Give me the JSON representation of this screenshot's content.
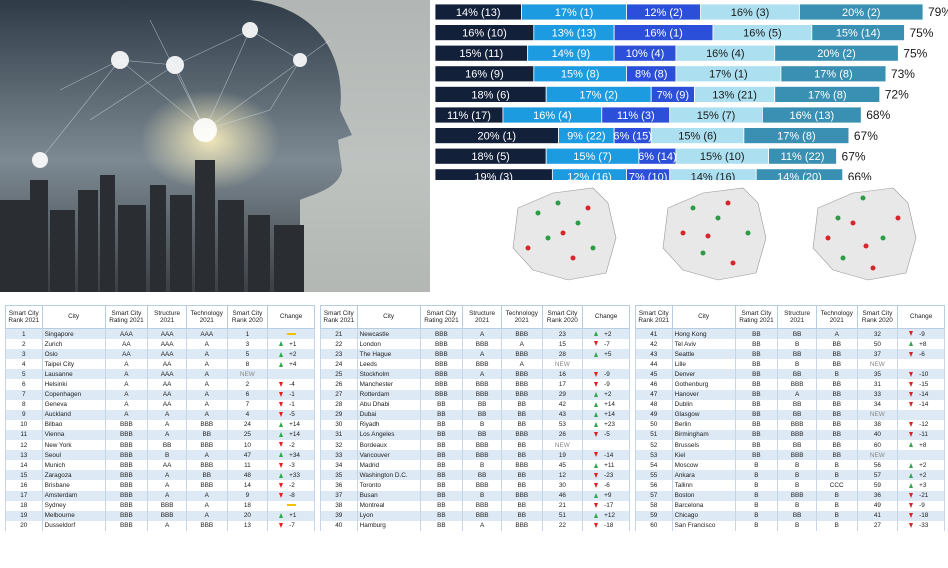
{
  "chart_data": {
    "type": "stacked_bar",
    "series": [
      {
        "color": "#13203a",
        "values": [
          14,
          16,
          15,
          16,
          18,
          11,
          20,
          18,
          19
        ],
        "value_labels": [
          "14% (13)",
          "16% (10)",
          "15% (11)",
          "16% (9)",
          "18% (6)",
          "11% (17)",
          "20% (1)",
          "18% (5)",
          "19% (3)"
        ]
      },
      {
        "color": "#1c9be0",
        "values": [
          17,
          13,
          14,
          15,
          17,
          16,
          9,
          15,
          12
        ],
        "value_labels": [
          "17% (1)",
          "13% (13)",
          "14% (9)",
          "15% (8)",
          "17% (2)",
          "16% (4)",
          "9% (22)",
          "15% (7)",
          "12% (16)"
        ]
      },
      {
        "color": "#2b4fd8",
        "values": [
          12,
          16,
          10,
          8,
          7,
          11,
          6,
          6,
          7
        ],
        "value_labels": [
          "12% (2)",
          "16% (1)",
          "10% (4)",
          "8% (8)",
          "7% (9)",
          "11% (3)",
          "6% (15)",
          "6% (14)",
          "7% (10)"
        ]
      },
      {
        "color": "#ace0f1",
        "values": [
          16,
          16,
          16,
          17,
          13,
          15,
          15,
          15,
          14
        ],
        "value_labels": [
          "16% (3)",
          "16% (5)",
          "16% (4)",
          "17% (1)",
          "13% (21)",
          "15% (7)",
          "15% (6)",
          "15% (10)",
          "14% (16)"
        ]
      },
      {
        "color": "#3a90b2",
        "values": [
          20,
          15,
          20,
          17,
          17,
          16,
          17,
          11,
          14
        ],
        "value_labels": [
          "20% (2)",
          "15% (14)",
          "20% (2)",
          "17% (8)",
          "17% (8)",
          "16% (13)",
          "17% (8)",
          "11% (22)",
          "14% (20)"
        ]
      }
    ],
    "totals": {
      "values": [
        79,
        75,
        75,
        73,
        72,
        68,
        67,
        67,
        66
      ],
      "value_labels": [
        "79%",
        "75%",
        "75%",
        "73%",
        "72%",
        "68%",
        "67%",
        "67%",
        "66%"
      ]
    }
  },
  "tables": [
    {
      "header": [
        "Smart City Rank 2021",
        "City",
        "Smart City Rating 2021",
        "Structure 2021",
        "Technology 2021",
        "Smart City Rank 2020",
        "Change"
      ],
      "rows": [
        [
          1,
          "Singapore",
          "AAA",
          "AAA",
          "AAA",
          1,
          null
        ],
        [
          2,
          "Zurich",
          "AA",
          "AAA",
          "A",
          3,
          "+1"
        ],
        [
          3,
          "Oslo",
          "AA",
          "AAA",
          "A",
          5,
          "+2"
        ],
        [
          4,
          "Taipei City",
          "A",
          "AA",
          "A",
          8,
          "+4"
        ],
        [
          5,
          "Lausanne",
          "A",
          "AAA",
          "A",
          "NEW",
          null
        ],
        [
          6,
          "Helsinki",
          "A",
          "AA",
          "A",
          2,
          "-4"
        ],
        [
          7,
          "Copenhagen",
          "A",
          "AA",
          "A",
          6,
          "-1"
        ],
        [
          8,
          "Geneva",
          "A",
          "AA",
          "A",
          7,
          "-1"
        ],
        [
          9,
          "Auckland",
          "A",
          "A",
          "A",
          4,
          "-5"
        ],
        [
          10,
          "Bilbao",
          "BBB",
          "A",
          "BBB",
          24,
          "+14"
        ],
        [
          11,
          "Vienna",
          "BBB",
          "A",
          "BB",
          25,
          "+14"
        ],
        [
          12,
          "New York",
          "BBB",
          "BB",
          "BBB",
          10,
          "-2"
        ],
        [
          13,
          "Seoul",
          "BBB",
          "B",
          "A",
          47,
          "+34"
        ],
        [
          14,
          "Munich",
          "BBB",
          "AA",
          "BBB",
          11,
          "-3"
        ],
        [
          15,
          "Zaragoza",
          "BBB",
          "A",
          "BB",
          48,
          "+33"
        ],
        [
          16,
          "Brisbane",
          "BBB",
          "A",
          "BBB",
          14,
          "-2"
        ],
        [
          17,
          "Amsterdam",
          "BBB",
          "A",
          "A",
          9,
          "-8"
        ],
        [
          18,
          "Sydney",
          "BBB",
          "BBB",
          "A",
          18,
          null
        ],
        [
          19,
          "Melbourne",
          "BBB",
          "BBB",
          "A",
          20,
          "+1"
        ],
        [
          20,
          "Dusseldorf",
          "BBB",
          "A",
          "BBB",
          13,
          "-7"
        ]
      ]
    },
    {
      "header": [
        "Smart City Rank 2021",
        "City",
        "Smart City Rating 2021",
        "Structure 2021",
        "Technology 2021",
        "Smart City Rank 2020",
        "Change"
      ],
      "rows": [
        [
          21,
          "Newcastle",
          "BBB",
          "A",
          "BBB",
          23,
          "+2"
        ],
        [
          22,
          "London",
          "BBB",
          "BBB",
          "A",
          15,
          "-7"
        ],
        [
          23,
          "The Hague",
          "BBB",
          "A",
          "BBB",
          28,
          "+5"
        ],
        [
          24,
          "Leeds",
          "BBB",
          "BBB",
          "A",
          "NEW",
          null
        ],
        [
          25,
          "Stockholm",
          "BBB",
          "A",
          "BBB",
          16,
          "-9"
        ],
        [
          26,
          "Manchester",
          "BBB",
          "BBB",
          "BBB",
          17,
          "-9"
        ],
        [
          27,
          "Rotterdam",
          "BBB",
          "BBB",
          "BBB",
          29,
          "+2"
        ],
        [
          28,
          "Abu Dhabi",
          "BB",
          "BB",
          "BB",
          42,
          "+14"
        ],
        [
          29,
          "Dubai",
          "BB",
          "BB",
          "BB",
          43,
          "+14"
        ],
        [
          30,
          "Riyadh",
          "BB",
          "B",
          "BB",
          53,
          "+23"
        ],
        [
          31,
          "Los Angeles",
          "BB",
          "BB",
          "BBB",
          26,
          "-5"
        ],
        [
          32,
          "Bordeaux",
          "BB",
          "BBB",
          "BB",
          "NEW",
          null
        ],
        [
          33,
          "Vancouver",
          "BB",
          "BBB",
          "BB",
          19,
          "-14"
        ],
        [
          34,
          "Madrid",
          "BB",
          "B",
          "BBB",
          45,
          "+11"
        ],
        [
          35,
          "Washington D.C.",
          "BB",
          "BB",
          "BB",
          12,
          "-23"
        ],
        [
          36,
          "Toronto",
          "BB",
          "BBB",
          "BB",
          30,
          "-6"
        ],
        [
          37,
          "Busan",
          "BB",
          "B",
          "BBB",
          46,
          "+9"
        ],
        [
          38,
          "Montreal",
          "BB",
          "BBB",
          "BB",
          21,
          "-17"
        ],
        [
          39,
          "Lyon",
          "BB",
          "BBB",
          "BB",
          51,
          "+12"
        ],
        [
          40,
          "Hamburg",
          "BB",
          "A",
          "BBB",
          22,
          "-18"
        ]
      ]
    },
    {
      "header": [
        "Smart City Rank 2021",
        "City",
        "Smart City Rating 2021",
        "Structure 2021",
        "Technology 2021",
        "Smart City Rank 2020",
        "Change"
      ],
      "rows": [
        [
          41,
          "Hong Kong",
          "BB",
          "BB",
          "A",
          32,
          "-9"
        ],
        [
          42,
          "Tel Aviv",
          "BB",
          "B",
          "BB",
          50,
          "+8"
        ],
        [
          43,
          "Seattle",
          "BB",
          "BB",
          "BB",
          37,
          "-6"
        ],
        [
          44,
          "Lille",
          "BB",
          "B",
          "BB",
          "NEW",
          null
        ],
        [
          45,
          "Denver",
          "BB",
          "BB",
          "B",
          35,
          "-10"
        ],
        [
          46,
          "Gothenburg",
          "BB",
          "BBB",
          "BB",
          31,
          "-15"
        ],
        [
          47,
          "Hanover",
          "BB",
          "A",
          "BB",
          33,
          "-14"
        ],
        [
          48,
          "Dublin",
          "BB",
          "BB",
          "BB",
          34,
          "-14"
        ],
        [
          49,
          "Glasgow",
          "BB",
          "BB",
          "BB",
          "NEW",
          null
        ],
        [
          50,
          "Berlin",
          "BB",
          "BBB",
          "BB",
          38,
          "-12"
        ],
        [
          51,
          "Birmingham",
          "BB",
          "BBB",
          "BB",
          40,
          "-11"
        ],
        [
          52,
          "Brussels",
          "BB",
          "BB",
          "BB",
          60,
          "+8"
        ],
        [
          53,
          "Kiel",
          "BB",
          "BBB",
          "BB",
          "NEW",
          null
        ],
        [
          54,
          "Moscow",
          "B",
          "B",
          "B",
          56,
          "+2"
        ],
        [
          55,
          "Ankara",
          "B",
          "B",
          "B",
          57,
          "+2"
        ],
        [
          56,
          "Tallinn",
          "B",
          "B",
          "CCC",
          59,
          "+3"
        ],
        [
          57,
          "Boston",
          "B",
          "BBB",
          "B",
          36,
          "-21"
        ],
        [
          58,
          "Barcelona",
          "B",
          "B",
          "B",
          49,
          "-9"
        ],
        [
          59,
          "Chicago",
          "B",
          "BB",
          "B",
          41,
          "-18"
        ],
        [
          60,
          "San Francisco",
          "B",
          "B",
          "B",
          27,
          "-33"
        ]
      ]
    }
  ]
}
